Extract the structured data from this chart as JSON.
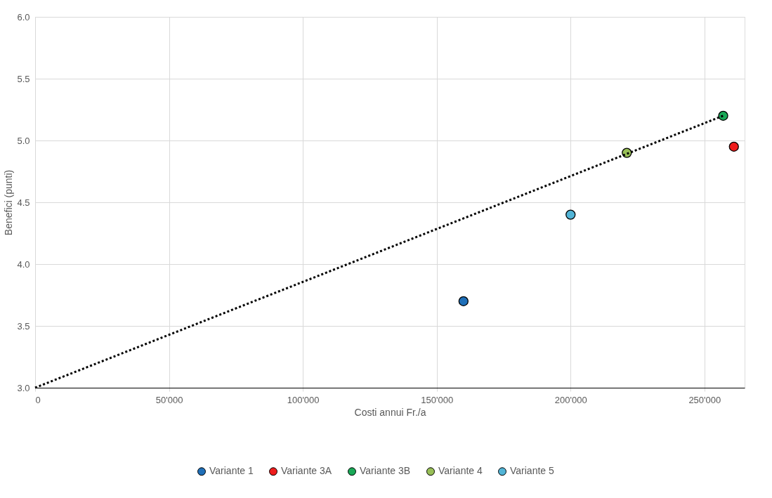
{
  "chart_data": {
    "type": "scatter",
    "xlabel": "Costi annui Fr./a",
    "ylabel": "Benefici (punti)",
    "xlim": [
      0,
      265000
    ],
    "ylim": [
      3.0,
      6.0
    ],
    "xticks": [
      0,
      {
        "value": 50000,
        "label": "50'000"
      },
      {
        "value": 100000,
        "label": "100'000"
      },
      {
        "value": 150000,
        "label": "150'000"
      },
      {
        "value": 200000,
        "label": "200'000"
      },
      {
        "value": 250000,
        "label": "250'000"
      }
    ],
    "yticks": [
      {
        "value": 3,
        "label": "3.0"
      },
      3.5,
      {
        "value": 4,
        "label": "4.0"
      },
      4.5,
      {
        "value": 5,
        "label": "5.0"
      },
      5.5,
      {
        "value": 6,
        "label": "6.0"
      }
    ],
    "grid": true,
    "legend": "bottom",
    "marker": "circle",
    "series": [
      {
        "name": "Variante 1",
        "color": "#1f6fb8",
        "x": [
          160000
        ],
        "values": [
          3.7
        ]
      },
      {
        "name": "Variante 3A",
        "color": "#ee1c1c",
        "x": [
          261000
        ],
        "values": [
          4.95
        ]
      },
      {
        "name": "Variante 3B",
        "color": "#1aa857",
        "x": [
          257000
        ],
        "values": [
          5.2
        ]
      },
      {
        "name": "Variante 4",
        "color": "#98bf57",
        "x": [
          221000
        ],
        "values": [
          4.9
        ]
      },
      {
        "name": "Variante 5",
        "color": "#52b4d6",
        "x": [
          200000
        ],
        "values": [
          4.4
        ]
      },
      {
        "type": "line",
        "marker": "none",
        "color": "#000000",
        "line_style": "dotted",
        "x": [
          0,
          257000
        ],
        "values": [
          3.0,
          5.2
        ]
      }
    ]
  }
}
